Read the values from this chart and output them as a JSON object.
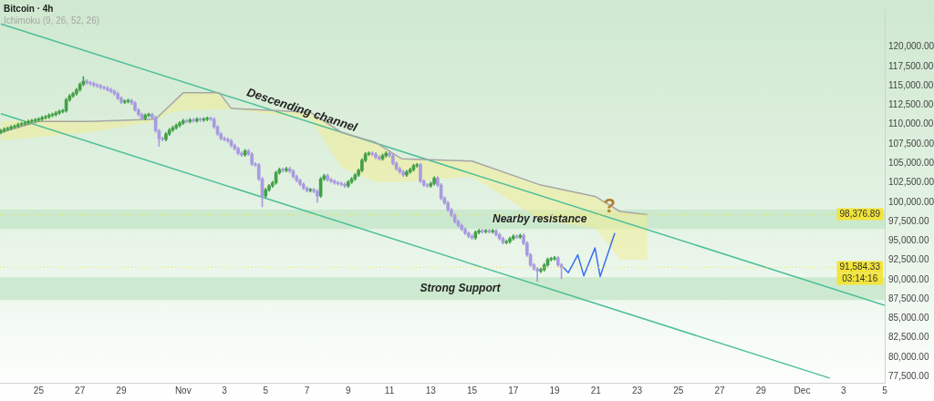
{
  "chart_data": {
    "type": "candlestick",
    "title": "Bitcoin · 4h",
    "legend": "top left",
    "x": [
      "--10-23T04:00",
      "--10-23T08:00",
      "--10-23T12:00",
      "--10-23T16:00",
      "--10-23T20:00",
      "--10-24T00:00",
      "--10-24T04:00",
      "--10-24T08:00",
      "--10-24T12:00",
      "--10-24T16:00",
      "--10-24T20:00",
      "--10-25T00:00",
      "--10-25T04:00",
      "--10-25T08:00",
      "--10-25T12:00",
      "--10-25T16:00",
      "--10-25T20:00",
      "--10-26T00:00",
      "--10-26T04:00",
      "--10-26T08:00",
      "--10-26T12:00",
      "--10-26T16:00",
      "--10-26T20:00",
      "--10-27T00:00",
      "--10-27T04:00",
      "--10-27T08:00",
      "--10-27T12:00",
      "--10-27T16:00",
      "--10-27T20:00",
      "--10-28T00:00",
      "--10-28T04:00",
      "--10-28T08:00",
      "--10-28T12:00",
      "--10-28T16:00",
      "--10-28T20:00",
      "--10-29T00:00",
      "--10-29T04:00",
      "--10-29T08:00",
      "--10-29T12:00",
      "--10-29T16:00",
      "--10-29T20:00",
      "--10-30T00:00",
      "--10-30T04:00",
      "--10-30T08:00",
      "--10-30T12:00",
      "--10-30T16:00",
      "--10-30T20:00",
      "--10-31T00:00",
      "--10-31T04:00",
      "--10-31T08:00",
      "--10-31T12:00",
      "--10-31T16:00",
      "--10-31T20:00",
      "--11-01T00:00",
      "--11-01T04:00",
      "--11-01T08:00",
      "--11-01T12:00",
      "--11-01T16:00",
      "--11-01T20:00",
      "--11-02T00:00",
      "--11-02T04:00",
      "--11-02T08:00",
      "--11-02T12:00",
      "--11-02T16:00",
      "--11-02T20:00",
      "--11-03T00:00",
      "--11-03T04:00",
      "--11-03T08:00",
      "--11-03T12:00",
      "--11-03T16:00",
      "--11-03T20:00",
      "--11-04T00:00",
      "--11-04T04:00",
      "--11-04T08:00",
      "--11-04T12:00",
      "--11-04T16:00",
      "--11-04T20:00",
      "--11-05T00:00",
      "--11-05T04:00",
      "--11-05T08:00",
      "--11-05T12:00",
      "--11-05T16:00",
      "--11-05T20:00",
      "--11-06T00:00",
      "--11-06T04:00",
      "--11-06T08:00",
      "--11-06T12:00",
      "--11-06T16:00",
      "--11-06T20:00",
      "--11-07T00:00",
      "--11-07T04:00",
      "--11-07T08:00",
      "--11-07T12:00",
      "--11-07T16:00",
      "--11-07T20:00",
      "--11-08T00:00",
      "--11-08T04:00",
      "--11-08T08:00",
      "--11-08T12:00",
      "--11-08T16:00",
      "--11-08T20:00",
      "--11-09T00:00",
      "--11-09T04:00",
      "--11-09T08:00",
      "--11-09T12:00",
      "--11-09T16:00",
      "--11-09T20:00",
      "--11-10T00:00",
      "--11-10T04:00",
      "--11-10T08:00",
      "--11-10T12:00",
      "--11-10T16:00",
      "--11-10T20:00",
      "--11-11T00:00",
      "--11-11T04:00",
      "--11-11T08:00",
      "--11-11T12:00",
      "--11-11T16:00",
      "--11-11T20:00",
      "--11-12T00:00",
      "--11-12T04:00",
      "--11-12T08:00",
      "--11-12T12:00",
      "--11-12T16:00",
      "--11-12T20:00",
      "--11-13T00:00",
      "--11-13T04:00",
      "--11-13T08:00",
      "--11-13T12:00",
      "--11-13T16:00",
      "--11-13T20:00",
      "--11-14T00:00",
      "--11-14T04:00",
      "--11-14T08:00",
      "--11-14T12:00",
      "--11-14T16:00",
      "--11-14T20:00",
      "--11-15T00:00",
      "--11-15T04:00",
      "--11-15T08:00",
      "--11-15T12:00",
      "--11-15T16:00",
      "--11-15T20:00",
      "--11-16T00:00",
      "--11-16T04:00",
      "--11-16T08:00",
      "--11-16T12:00",
      "--11-16T16:00",
      "--11-16T20:00",
      "--11-17T00:00",
      "--11-17T04:00",
      "--11-17T08:00",
      "--11-17T12:00",
      "--11-17T16:00",
      "--11-17T20:00",
      "--11-18T00:00",
      "--11-18T04:00",
      "--11-18T08:00",
      "--11-18T12:00",
      "--11-18T16:00",
      "--11-18T20:00",
      "--11-19T00:00",
      "--11-19T04:00",
      "--11-19T08:00"
    ],
    "ohlc": [
      [
        109000,
        109400,
        108800,
        109200
      ],
      [
        109200,
        109600,
        109000,
        109400
      ],
      [
        109400,
        109700,
        109200,
        109500
      ],
      [
        109500,
        109900,
        109300,
        109700
      ],
      [
        109700,
        110000,
        109500,
        109800
      ],
      [
        109800,
        110200,
        109600,
        110000
      ],
      [
        110000,
        110300,
        109800,
        110100
      ],
      [
        110100,
        110400,
        109900,
        110200
      ],
      [
        110200,
        110600,
        110000,
        110400
      ],
      [
        110400,
        110700,
        110200,
        110500
      ],
      [
        110500,
        110800,
        110300,
        110600
      ],
      [
        110600,
        110900,
        110400,
        110700
      ],
      [
        110700,
        111100,
        110500,
        110900
      ],
      [
        110900,
        111200,
        110700,
        111000
      ],
      [
        111000,
        111400,
        110800,
        111200
      ],
      [
        111200,
        111500,
        111000,
        111300
      ],
      [
        111300,
        111700,
        111100,
        111500
      ],
      [
        111500,
        111900,
        111300,
        111700
      ],
      [
        111700,
        112000,
        111500,
        111800
      ],
      [
        111800,
        113400,
        111600,
        113200
      ],
      [
        113200,
        113900,
        113000,
        113700
      ],
      [
        113700,
        114200,
        113500,
        114000
      ],
      [
        114000,
        114700,
        113800,
        114500
      ],
      [
        114500,
        115400,
        114300,
        115200
      ],
      [
        115200,
        116200,
        115000,
        115600
      ],
      [
        115600,
        115800,
        115200,
        115400
      ],
      [
        115400,
        115600,
        115100,
        115300
      ],
      [
        115300,
        115500,
        114900,
        115100
      ],
      [
        115100,
        115300,
        114800,
        115000
      ],
      [
        115000,
        115200,
        114600,
        114800
      ],
      [
        114800,
        115000,
        114500,
        114700
      ],
      [
        114700,
        114900,
        114300,
        114500
      ],
      [
        114500,
        114700,
        114100,
        114300
      ],
      [
        114300,
        114500,
        113800,
        114000
      ],
      [
        114000,
        114200,
        113200,
        113400
      ],
      [
        113400,
        113600,
        112700,
        112900
      ],
      [
        112900,
        113200,
        112700,
        113000
      ],
      [
        113000,
        113300,
        112800,
        113100
      ],
      [
        113100,
        113300,
        112600,
        112800
      ],
      [
        112800,
        113000,
        111700,
        111900
      ],
      [
        111900,
        112100,
        111100,
        111300
      ],
      [
        111300,
        111500,
        110600,
        110800
      ],
      [
        110800,
        111400,
        110600,
        111200
      ],
      [
        111200,
        111500,
        111000,
        111300
      ],
      [
        111300,
        111500,
        110700,
        110900
      ],
      [
        110900,
        111100,
        109000,
        109200
      ],
      [
        109200,
        109400,
        107200,
        108200
      ],
      [
        108200,
        108400,
        107900,
        108100
      ],
      [
        108100,
        109000,
        107900,
        108800
      ],
      [
        108800,
        109500,
        108600,
        109300
      ],
      [
        109300,
        109800,
        109100,
        109600
      ],
      [
        109600,
        110100,
        109400,
        109900
      ],
      [
        109900,
        110400,
        109700,
        110200
      ],
      [
        110200,
        110700,
        110000,
        110500
      ],
      [
        110500,
        110700,
        110200,
        110400
      ],
      [
        110400,
        110800,
        110200,
        110600
      ],
      [
        110600,
        110800,
        110300,
        110500
      ],
      [
        110500,
        110900,
        110300,
        110700
      ],
      [
        110700,
        110900,
        110400,
        110600
      ],
      [
        110600,
        110900,
        110400,
        110700
      ],
      [
        110700,
        111000,
        110500,
        110800
      ],
      [
        110800,
        111000,
        110500,
        110700
      ],
      [
        110700,
        110900,
        109500,
        109700
      ],
      [
        109700,
        109900,
        108600,
        108800
      ],
      [
        108800,
        109000,
        108000,
        108200
      ],
      [
        108200,
        108400,
        107900,
        108100
      ],
      [
        108100,
        108300,
        107700,
        107900
      ],
      [
        107900,
        108100,
        107100,
        107300
      ],
      [
        107300,
        107500,
        106700,
        106900
      ],
      [
        106900,
        107100,
        106100,
        106300
      ],
      [
        106300,
        106500,
        105900,
        106100
      ],
      [
        106100,
        106800,
        105900,
        106600
      ],
      [
        106600,
        106800,
        106000,
        106200
      ],
      [
        106200,
        106400,
        104700,
        104900
      ],
      [
        104900,
        105100,
        104600,
        104800
      ],
      [
        104800,
        105000,
        102800,
        103000
      ],
      [
        103000,
        103200,
        99400,
        100800
      ],
      [
        100800,
        101800,
        100600,
        101600
      ],
      [
        101600,
        102300,
        101400,
        102100
      ],
      [
        102100,
        102700,
        101900,
        102500
      ],
      [
        102500,
        104000,
        102300,
        103800
      ],
      [
        103800,
        104400,
        103600,
        104200
      ],
      [
        104200,
        104400,
        103900,
        104100
      ],
      [
        104100,
        104500,
        103900,
        104300
      ],
      [
        104300,
        104500,
        103800,
        104000
      ],
      [
        104000,
        104200,
        103100,
        103300
      ],
      [
        103300,
        103500,
        102600,
        102800
      ],
      [
        102800,
        103000,
        102100,
        102300
      ],
      [
        102300,
        102500,
        101600,
        101800
      ],
      [
        101800,
        102000,
        101300,
        101500
      ],
      [
        101500,
        101800,
        101300,
        101600
      ],
      [
        101600,
        101800,
        101200,
        101400
      ],
      [
        101400,
        101600,
        100000,
        100800
      ],
      [
        100800,
        103200,
        100600,
        103000
      ],
      [
        103000,
        103600,
        102800,
        103400
      ],
      [
        103400,
        103600,
        102700,
        102900
      ],
      [
        102900,
        103100,
        102500,
        102700
      ],
      [
        102700,
        102900,
        102300,
        102500
      ],
      [
        102500,
        102700,
        102200,
        102400
      ],
      [
        102400,
        102600,
        102100,
        102300
      ],
      [
        102300,
        102500,
        101900,
        102100
      ],
      [
        102100,
        102800,
        101900,
        102600
      ],
      [
        102600,
        103200,
        102400,
        103000
      ],
      [
        103000,
        103700,
        102800,
        103500
      ],
      [
        103500,
        104300,
        103300,
        104100
      ],
      [
        104100,
        105600,
        103900,
        105400
      ],
      [
        105400,
        106400,
        105200,
        106200
      ],
      [
        106200,
        106500,
        106000,
        106300
      ],
      [
        106300,
        106500,
        106000,
        106200
      ],
      [
        106200,
        106400,
        105600,
        105800
      ],
      [
        105800,
        106000,
        105400,
        105600
      ],
      [
        105600,
        106200,
        105400,
        106000
      ],
      [
        106000,
        106500,
        105800,
        106300
      ],
      [
        106300,
        106500,
        105800,
        106000
      ],
      [
        106000,
        106200,
        104800,
        105000
      ],
      [
        105000,
        105200,
        104100,
        104300
      ],
      [
        104300,
        104500,
        103700,
        103900
      ],
      [
        103900,
        104100,
        103300,
        103500
      ],
      [
        103500,
        104100,
        103300,
        103900
      ],
      [
        103900,
        104400,
        103700,
        104200
      ],
      [
        104200,
        104900,
        104000,
        104700
      ],
      [
        104700,
        105000,
        104500,
        104800
      ],
      [
        104800,
        105000,
        102500,
        102700
      ],
      [
        102700,
        102900,
        102000,
        102200
      ],
      [
        102200,
        102400,
        101900,
        102100
      ],
      [
        102100,
        102600,
        101900,
        102400
      ],
      [
        102400,
        103300,
        102200,
        103100
      ],
      [
        103100,
        103300,
        102000,
        102200
      ],
      [
        102200,
        102400,
        100300,
        100500
      ],
      [
        100500,
        100700,
        99700,
        99900
      ],
      [
        99900,
        100100,
        98800,
        99000
      ],
      [
        99000,
        99200,
        98100,
        98300
      ],
      [
        98300,
        98500,
        97300,
        97500
      ],
      [
        97500,
        97700,
        96800,
        97000
      ],
      [
        97000,
        97200,
        96300,
        96500
      ],
      [
        96500,
        96700,
        95800,
        96000
      ],
      [
        96000,
        96200,
        95400,
        95600
      ],
      [
        95600,
        95800,
        95200,
        95400
      ],
      [
        95400,
        96300,
        95200,
        96100
      ],
      [
        96100,
        96500,
        95900,
        96300
      ],
      [
        96300,
        96500,
        96000,
        96200
      ],
      [
        96200,
        96500,
        96000,
        96300
      ],
      [
        96300,
        96500,
        96000,
        96200
      ],
      [
        96200,
        96500,
        96000,
        96300
      ],
      [
        96300,
        96500,
        95600,
        95800
      ],
      [
        95800,
        96000,
        95100,
        95300
      ],
      [
        95300,
        95500,
        94600,
        94800
      ],
      [
        94800,
        95100,
        94600,
        94900
      ],
      [
        94900,
        95500,
        94700,
        95300
      ],
      [
        95300,
        95800,
        95100,
        95600
      ],
      [
        95600,
        95800,
        95300,
        95500
      ],
      [
        95500,
        95900,
        95300,
        95700
      ],
      [
        95700,
        95900,
        94500,
        94700
      ],
      [
        94700,
        94900,
        93000,
        93200
      ],
      [
        93200,
        93400,
        91700,
        91900
      ],
      [
        91900,
        92100,
        91200,
        91400
      ],
      [
        91400,
        91600,
        89800,
        91100
      ],
      [
        91100,
        91500,
        90900,
        91300
      ],
      [
        91300,
        92100,
        91100,
        91900
      ],
      [
        91900,
        92800,
        91700,
        92600
      ],
      [
        92600,
        92900,
        92400,
        92700
      ],
      [
        92700,
        93000,
        92500,
        92800
      ],
      [
        92800,
        93000,
        91700,
        91900
      ],
      [
        91900,
        92100,
        90100,
        91600
      ]
    ],
    "series": [
      {
        "type": "line",
        "name": "Ichimoku (9, 26, 52, 26)",
        "color": "#a6a6a6",
        "x": [
          "--10-23T04:00",
          "--10-25T00:00",
          "--10-27T12:00",
          "--10-30T16:00",
          "--10-31T08:00",
          "--11-01T00:00",
          "--11-02T18:00",
          "--11-03T08:00",
          "--11-07T04:00",
          "--11-08T16:00",
          "--11-10T08:00",
          "--11-11T14:00",
          "--11-15T00:00",
          "--11-18T08:00",
          "--11-21T00:00",
          "--11-22T04:00",
          "--11-23T12:00"
        ],
        "values": [
          109000,
          110400,
          110400,
          110700,
          112400,
          114100,
          114100,
          112100,
          111600,
          109000,
          107700,
          105600,
          105300,
          102200,
          100700,
          98800,
          98400
        ],
        "lower": [
          107900,
          108400,
          109000,
          110400,
          111500,
          111800,
          112000,
          112000,
          110700,
          104500,
          102600,
          102600,
          103300,
          97700,
          96600,
          92600,
          92600
        ],
        "upper": [
          110400,
          110700,
          110400,
          110700,
          112400,
          114100,
          114100,
          112100,
          111600,
          109000,
          107700,
          105600,
          105300,
          102200,
          100700,
          98800,
          98400
        ]
      },
      {
        "type": "line",
        "color": "#4dbf9a",
        "x": [
          "--10-23T04:00",
          "--12-05T00:00"
        ],
        "values": [
          123000,
          86700
        ]
      },
      {
        "type": "line",
        "color": "#4dbf9a",
        "x": [
          "--10-23T04:00",
          "--12-02T08:00"
        ],
        "values": [
          111400,
          77300
        ]
      },
      {
        "type": "line",
        "color": "#3a6ff0",
        "x": [
          "--11-19T10:00",
          "--11-19T16:00",
          "--11-20T03:00",
          "--11-20T10:00",
          "--11-20T23:00",
          "--11-21T05:00",
          "--11-21T22:00"
        ],
        "values": [
          91600,
          90900,
          93200,
          90500,
          94100,
          90400,
          96000
        ]
      }
    ],
    "bands": [
      {
        "axis": "y",
        "from": 96550,
        "to": 99040,
        "label": "Nearby resistance",
        "color": "#c4e6c8"
      },
      {
        "axis": "y",
        "from": 87370,
        "to": 90310,
        "label": "Strong Support",
        "color": "#c4e6c8"
      }
    ],
    "ref_lines": [
      {
        "axis": "y",
        "value": 98376.89,
        "label": "98,376.89",
        "color": "#f2e43c",
        "line_style": "dotted"
      },
      {
        "axis": "y",
        "value": 91584.33,
        "label": "91,584.33",
        "color": "#f2e43c",
        "line_style": "dotted"
      }
    ],
    "annotations": [
      {
        "text": "Descending channel",
        "x": "--11-06T18:00",
        "y": 111840
      },
      {
        "text": "?",
        "x": "--11-21T23:00",
        "y": 98130
      },
      "03:14:16"
    ],
    "xlim": [
      "--10-23T03:00",
      "--12-05T00:00"
    ],
    "xticks": [
      {
        "value": "--10-25",
        "label": "25"
      },
      {
        "value": "--10-27",
        "label": "27"
      },
      {
        "value": "--10-29",
        "label": "29"
      },
      {
        "value": "--11-01",
        "label": "Nov"
      },
      {
        "value": "--11-03",
        "label": "3"
      },
      {
        "value": "--11-05",
        "label": "5"
      },
      {
        "value": "--11-07",
        "label": "7"
      },
      {
        "value": "--11-09",
        "label": "9"
      },
      {
        "value": "--11-11",
        "label": "11"
      },
      {
        "value": "--11-13",
        "label": "13"
      },
      {
        "value": "--11-15",
        "label": "15"
      },
      {
        "value": "--11-17",
        "label": "17"
      },
      {
        "value": "--11-19",
        "label": "19"
      },
      {
        "value": "--11-21",
        "label": "21"
      },
      {
        "value": "--11-23",
        "label": "23"
      },
      {
        "value": "--11-25",
        "label": "25"
      },
      {
        "value": "--11-27",
        "label": "27"
      },
      {
        "value": "--11-29",
        "label": "29"
      },
      {
        "value": "--12-01",
        "label": "Dec"
      },
      {
        "value": "--12-03",
        "label": "3"
      },
      {
        "value": "--12-05",
        "label": "5"
      }
    ],
    "ylim": [
      76700,
      124900
    ],
    "yticks": [
      {
        "value": 77500,
        "label": "77,500.00"
      },
      {
        "value": 80000,
        "label": "80,000.00"
      },
      {
        "value": 82500,
        "label": "82,500.00"
      },
      {
        "value": 85000,
        "label": "85,000.00"
      },
      {
        "value": 87500,
        "label": "87,500.00"
      },
      {
        "value": 90000,
        "label": "90,000.00"
      },
      {
        "value": 92500,
        "label": "92,500.00"
      },
      {
        "value": 95000,
        "label": "95,000.00"
      },
      {
        "value": 97500,
        "label": "97,500.00"
      },
      {
        "value": 100000,
        "label": "100,000.00"
      },
      {
        "value": 102500,
        "label": "102,500.00"
      },
      {
        "value": 105000,
        "label": "105,000.00"
      },
      {
        "value": 107500,
        "label": "107,500.00"
      },
      {
        "value": 110000,
        "label": "110,000.00"
      },
      {
        "value": 112500,
        "label": "112,500.00"
      },
      {
        "value": 115000,
        "label": "115,000.00"
      },
      {
        "value": 117500,
        "label": "117,500.00"
      },
      {
        "value": 120000,
        "label": "120,000.00"
      }
    ],
    "grid": false
  }
}
